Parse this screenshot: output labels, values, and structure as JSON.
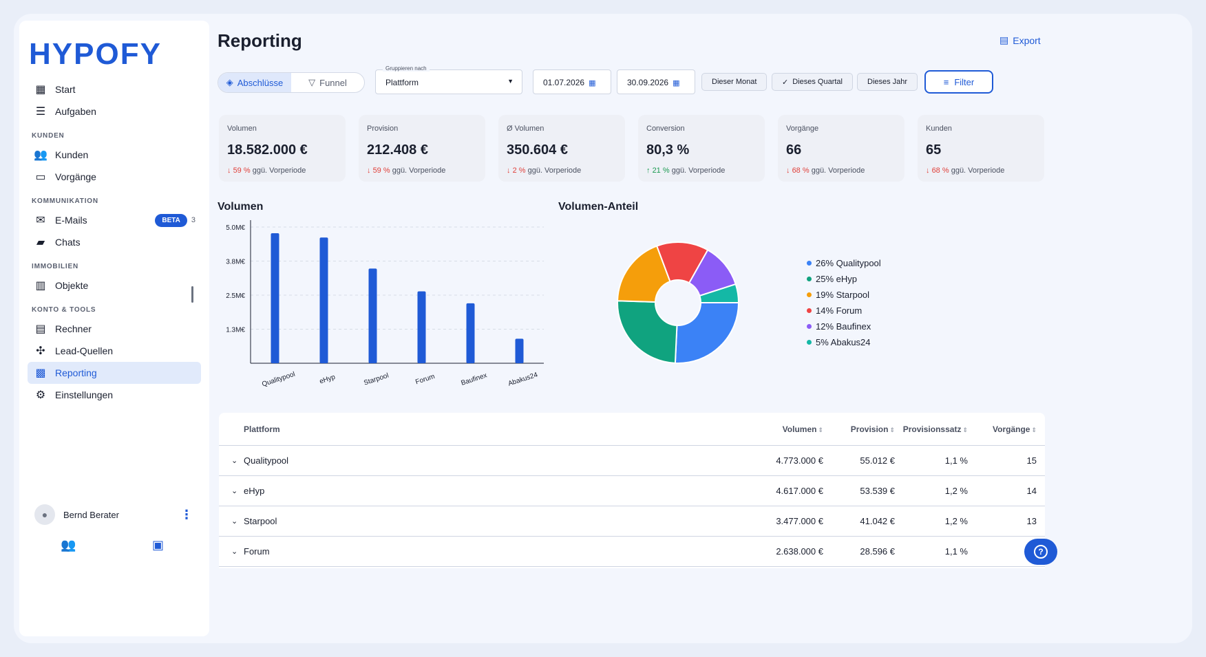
{
  "app": {
    "logo": "HYPOFY",
    "page_title": "Reporting",
    "export_label": "Export"
  },
  "sidebar": {
    "top_items": [
      {
        "label": "Start",
        "icon": "grid-icon"
      },
      {
        "label": "Aufgaben",
        "icon": "checklist-icon"
      }
    ],
    "sections": [
      {
        "title": "KUNDEN",
        "items": [
          {
            "label": "Kunden",
            "icon": "users-icon"
          },
          {
            "label": "Vorgänge",
            "icon": "folder-icon"
          }
        ]
      },
      {
        "title": "KOMMUNIKATION",
        "items": [
          {
            "label": "E-Mails",
            "icon": "mail-icon",
            "badge": "BETA",
            "count": "3"
          },
          {
            "label": "Chats",
            "icon": "chat-icon"
          }
        ]
      },
      {
        "title": "IMMOBILIEN",
        "items": [
          {
            "label": "Objekte",
            "icon": "building-icon"
          }
        ]
      },
      {
        "title": "KONTO & TOOLS",
        "items": [
          {
            "label": "Rechner",
            "icon": "calculator-icon"
          },
          {
            "label": "Lead-Quellen",
            "icon": "network-icon"
          },
          {
            "label": "Reporting",
            "icon": "report-icon",
            "active": true
          },
          {
            "label": "Einstellungen",
            "icon": "user-settings-icon"
          }
        ]
      }
    ],
    "user_name": "Bernd Berater"
  },
  "toolbar": {
    "tab_closed": "Abschlüsse",
    "tab_funnel": "Funnel",
    "group_label": "Gruppieren nach",
    "group_value": "Plattform",
    "date_from": "01.07.2026",
    "date_to": "30.09.2026",
    "chip_month": "Dieser Monat",
    "chip_quarter": "Dieses Quartal",
    "chip_year": "Dieses Jahr",
    "filter_label": "Filter"
  },
  "kpis": [
    {
      "label": "Volumen",
      "value": "18.582.000 €",
      "delta": "59 %",
      "dir": "down",
      "suffix": "ggü. Vorperiode"
    },
    {
      "label": "Provision",
      "value": "212.408 €",
      "delta": "59 %",
      "dir": "down",
      "suffix": "ggü. Vorperiode"
    },
    {
      "label": "Ø Volumen",
      "value": "350.604 €",
      "delta": "2 %",
      "dir": "down",
      "suffix": "ggü. Vorperiode"
    },
    {
      "label": "Conversion",
      "value": "80,3 %",
      "delta": "21 %",
      "dir": "up",
      "suffix": "ggü. Vorperiode"
    },
    {
      "label": "Vorgänge",
      "value": "66",
      "delta": "68 %",
      "dir": "down",
      "suffix": "ggü. Vorperiode"
    },
    {
      "label": "Kunden",
      "value": "65",
      "delta": "68 %",
      "dir": "down",
      "suffix": "ggü. Vorperiode"
    }
  ],
  "chart_data": [
    {
      "type": "bar",
      "title": "Volumen",
      "categories": [
        "Qualitypool",
        "eHyp",
        "Starpool",
        "Forum",
        "Baufinex",
        "Abakus24"
      ],
      "values": [
        4773000,
        4617000,
        3477000,
        2638000,
        2200000,
        900000
      ],
      "yticks": [
        "5.0M€",
        "3.8M€",
        "2.5M€",
        "1.3M€"
      ],
      "ytick_values": [
        5000000,
        3750000,
        2500000,
        1250000
      ],
      "ylim": [
        0,
        5000000
      ],
      "color": "#1f5ad6"
    },
    {
      "type": "pie",
      "title": "Volumen-Anteil",
      "labels": [
        "Qualitypool",
        "eHyp",
        "Starpool",
        "Forum",
        "Baufinex",
        "Abakus24"
      ],
      "values": [
        26,
        25,
        19,
        14,
        12,
        5
      ],
      "legend": [
        "26% Qualitypool",
        "25% eHyp",
        "19% Starpool",
        "14% Forum",
        "12% Baufinex",
        "5% Abakus24"
      ],
      "colors": [
        "#3b82f6",
        "#10a37f",
        "#f59e0b",
        "#ef4444",
        "#8b5cf6",
        "#14b8a6"
      ]
    }
  ],
  "table": {
    "headers": [
      "Plattform",
      "Volumen",
      "Provision",
      "Provisionssatz",
      "Vorgänge"
    ],
    "rows": [
      [
        "Qualitypool",
        "4.773.000 €",
        "55.012 €",
        "1,1 %",
        "15"
      ],
      [
        "eHyp",
        "4.617.000 €",
        "53.539 €",
        "1,2 %",
        "14"
      ],
      [
        "Starpool",
        "3.477.000 €",
        "41.042 €",
        "1,2 %",
        "13"
      ],
      [
        "Forum",
        "2.638.000 €",
        "28.596 €",
        "1,1 %",
        ""
      ]
    ]
  }
}
